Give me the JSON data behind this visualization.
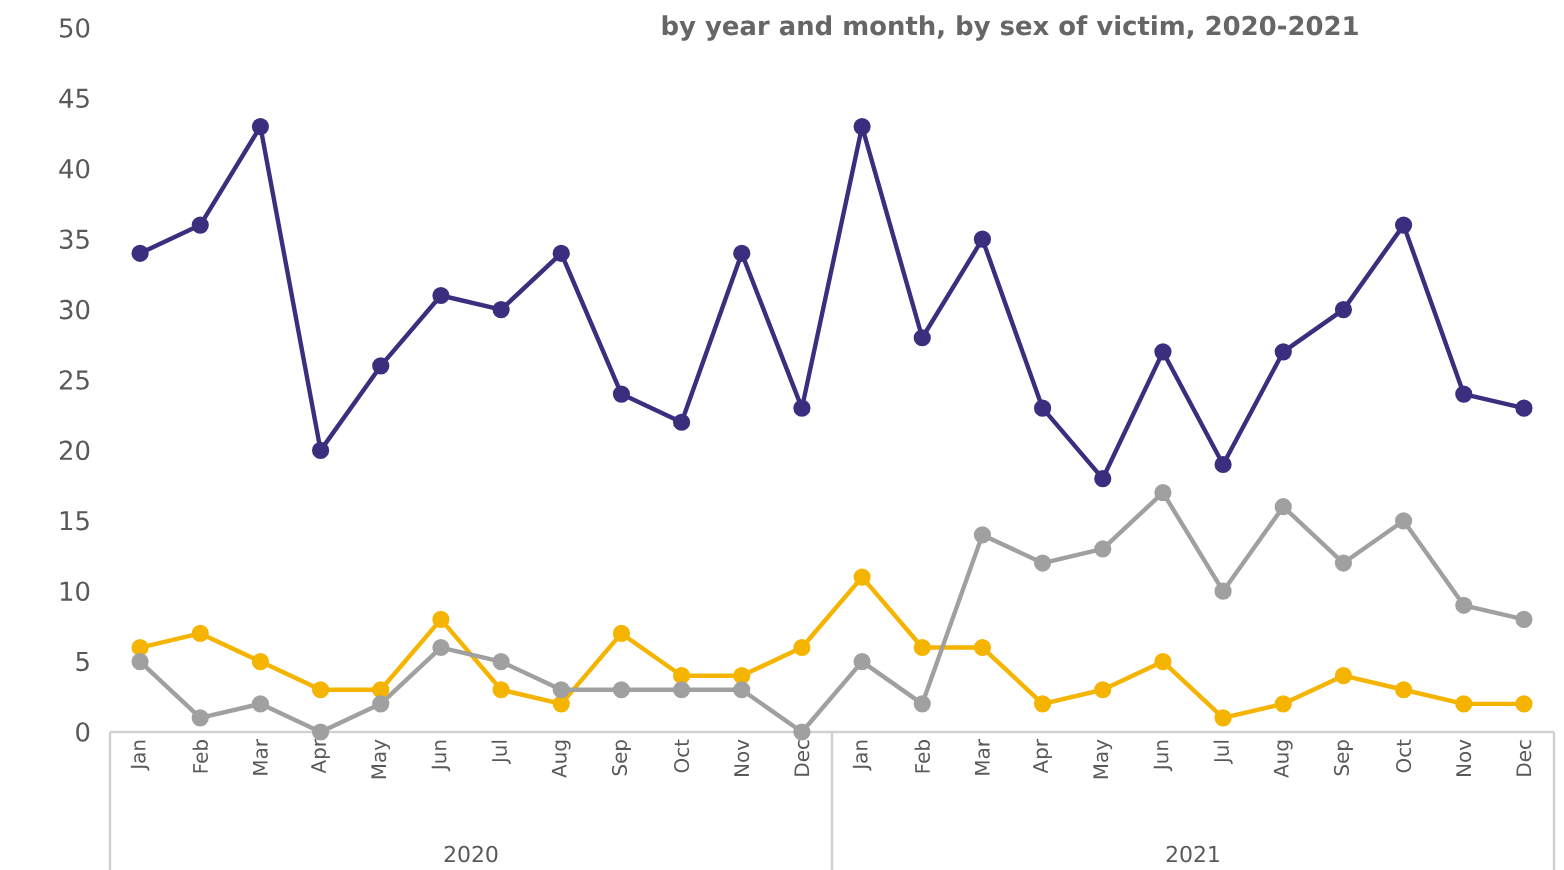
{
  "chart_data": {
    "type": "line",
    "title": "by year and month, by sex of victim, 2020-2021",
    "categories": [
      "Jan",
      "Feb",
      "Mar",
      "Apr",
      "May",
      "Jun",
      "Jul",
      "Aug",
      "Sep",
      "Oct",
      "Nov",
      "Dec",
      "Jan",
      "Feb",
      "Mar",
      "Apr",
      "May",
      "Jun",
      "Jul",
      "Aug",
      "Sep",
      "Oct",
      "Nov",
      "Dec"
    ],
    "annotations": [
      "2020",
      "2021"
    ],
    "series": [
      {
        "color": "#3b2e7e",
        "values": [
          34,
          36,
          43,
          20,
          26,
          31,
          30,
          34,
          24,
          22,
          34,
          23,
          43,
          28,
          35,
          23,
          18,
          27,
          19,
          27,
          30,
          36,
          24,
          23
        ]
      },
      {
        "color": "#f5b400",
        "values": [
          6,
          7,
          5,
          3,
          3,
          8,
          3,
          2,
          7,
          4,
          4,
          6,
          11,
          6,
          6,
          2,
          3,
          5,
          1,
          2,
          4,
          3,
          2,
          2
        ]
      },
      {
        "color": "#a0a0a0",
        "values": [
          5,
          1,
          2,
          0,
          2,
          6,
          5,
          3,
          3,
          3,
          3,
          0,
          5,
          2,
          14,
          12,
          13,
          17,
          10,
          16,
          12,
          15,
          9,
          8
        ]
      }
    ],
    "ylim": [
      0,
      50
    ],
    "yticks": [
      0,
      5,
      10,
      15,
      20,
      25,
      30,
      35,
      40,
      45,
      50
    ],
    "marker": "circle",
    "line_style": "solid",
    "grid": false,
    "legend": false
  }
}
